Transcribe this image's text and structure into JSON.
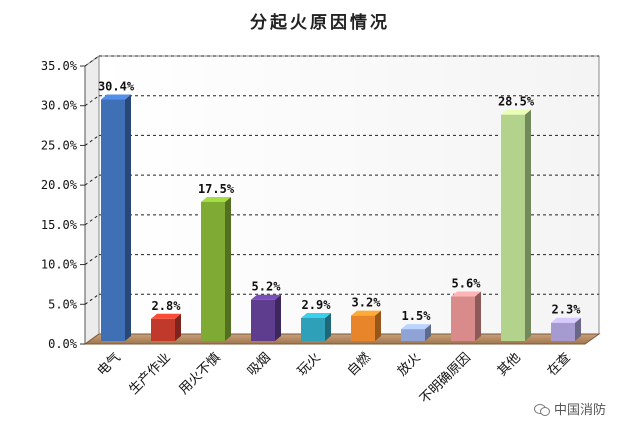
{
  "chart_data": {
    "type": "bar",
    "title": "分起火原因情况",
    "categories": [
      "电气",
      "生产作业",
      "用火不慎",
      "吸烟",
      "玩火",
      "自燃",
      "放火",
      "不明确原因",
      "其他",
      "在查"
    ],
    "values": [
      30.4,
      2.8,
      17.5,
      5.2,
      2.9,
      3.2,
      1.5,
      5.6,
      28.5,
      2.3
    ],
    "data_labels": [
      "30.4%",
      "2.8%",
      "17.5%",
      "5.2%",
      "2.9%",
      "3.2%",
      "1.5%",
      "5.6%",
      "28.5%",
      "2.3%"
    ],
    "yticks": [
      "0.0%",
      "5.0%",
      "10.0%",
      "15.0%",
      "20.0%",
      "25.0%",
      "30.0%",
      "35.0%"
    ],
    "ylim": [
      0,
      35
    ],
    "xlabel": "",
    "ylabel": "",
    "grid": true,
    "bar_colors": [
      "#3f6fb5",
      "#c0392b",
      "#7faa34",
      "#5e3d8f",
      "#2ea0b8",
      "#e8842a",
      "#8fa3d6",
      "#d98b8b",
      "#b3d38c",
      "#a59bd1"
    ]
  },
  "watermark": {
    "text": "中国消防",
    "icon": "wechat-icon"
  }
}
